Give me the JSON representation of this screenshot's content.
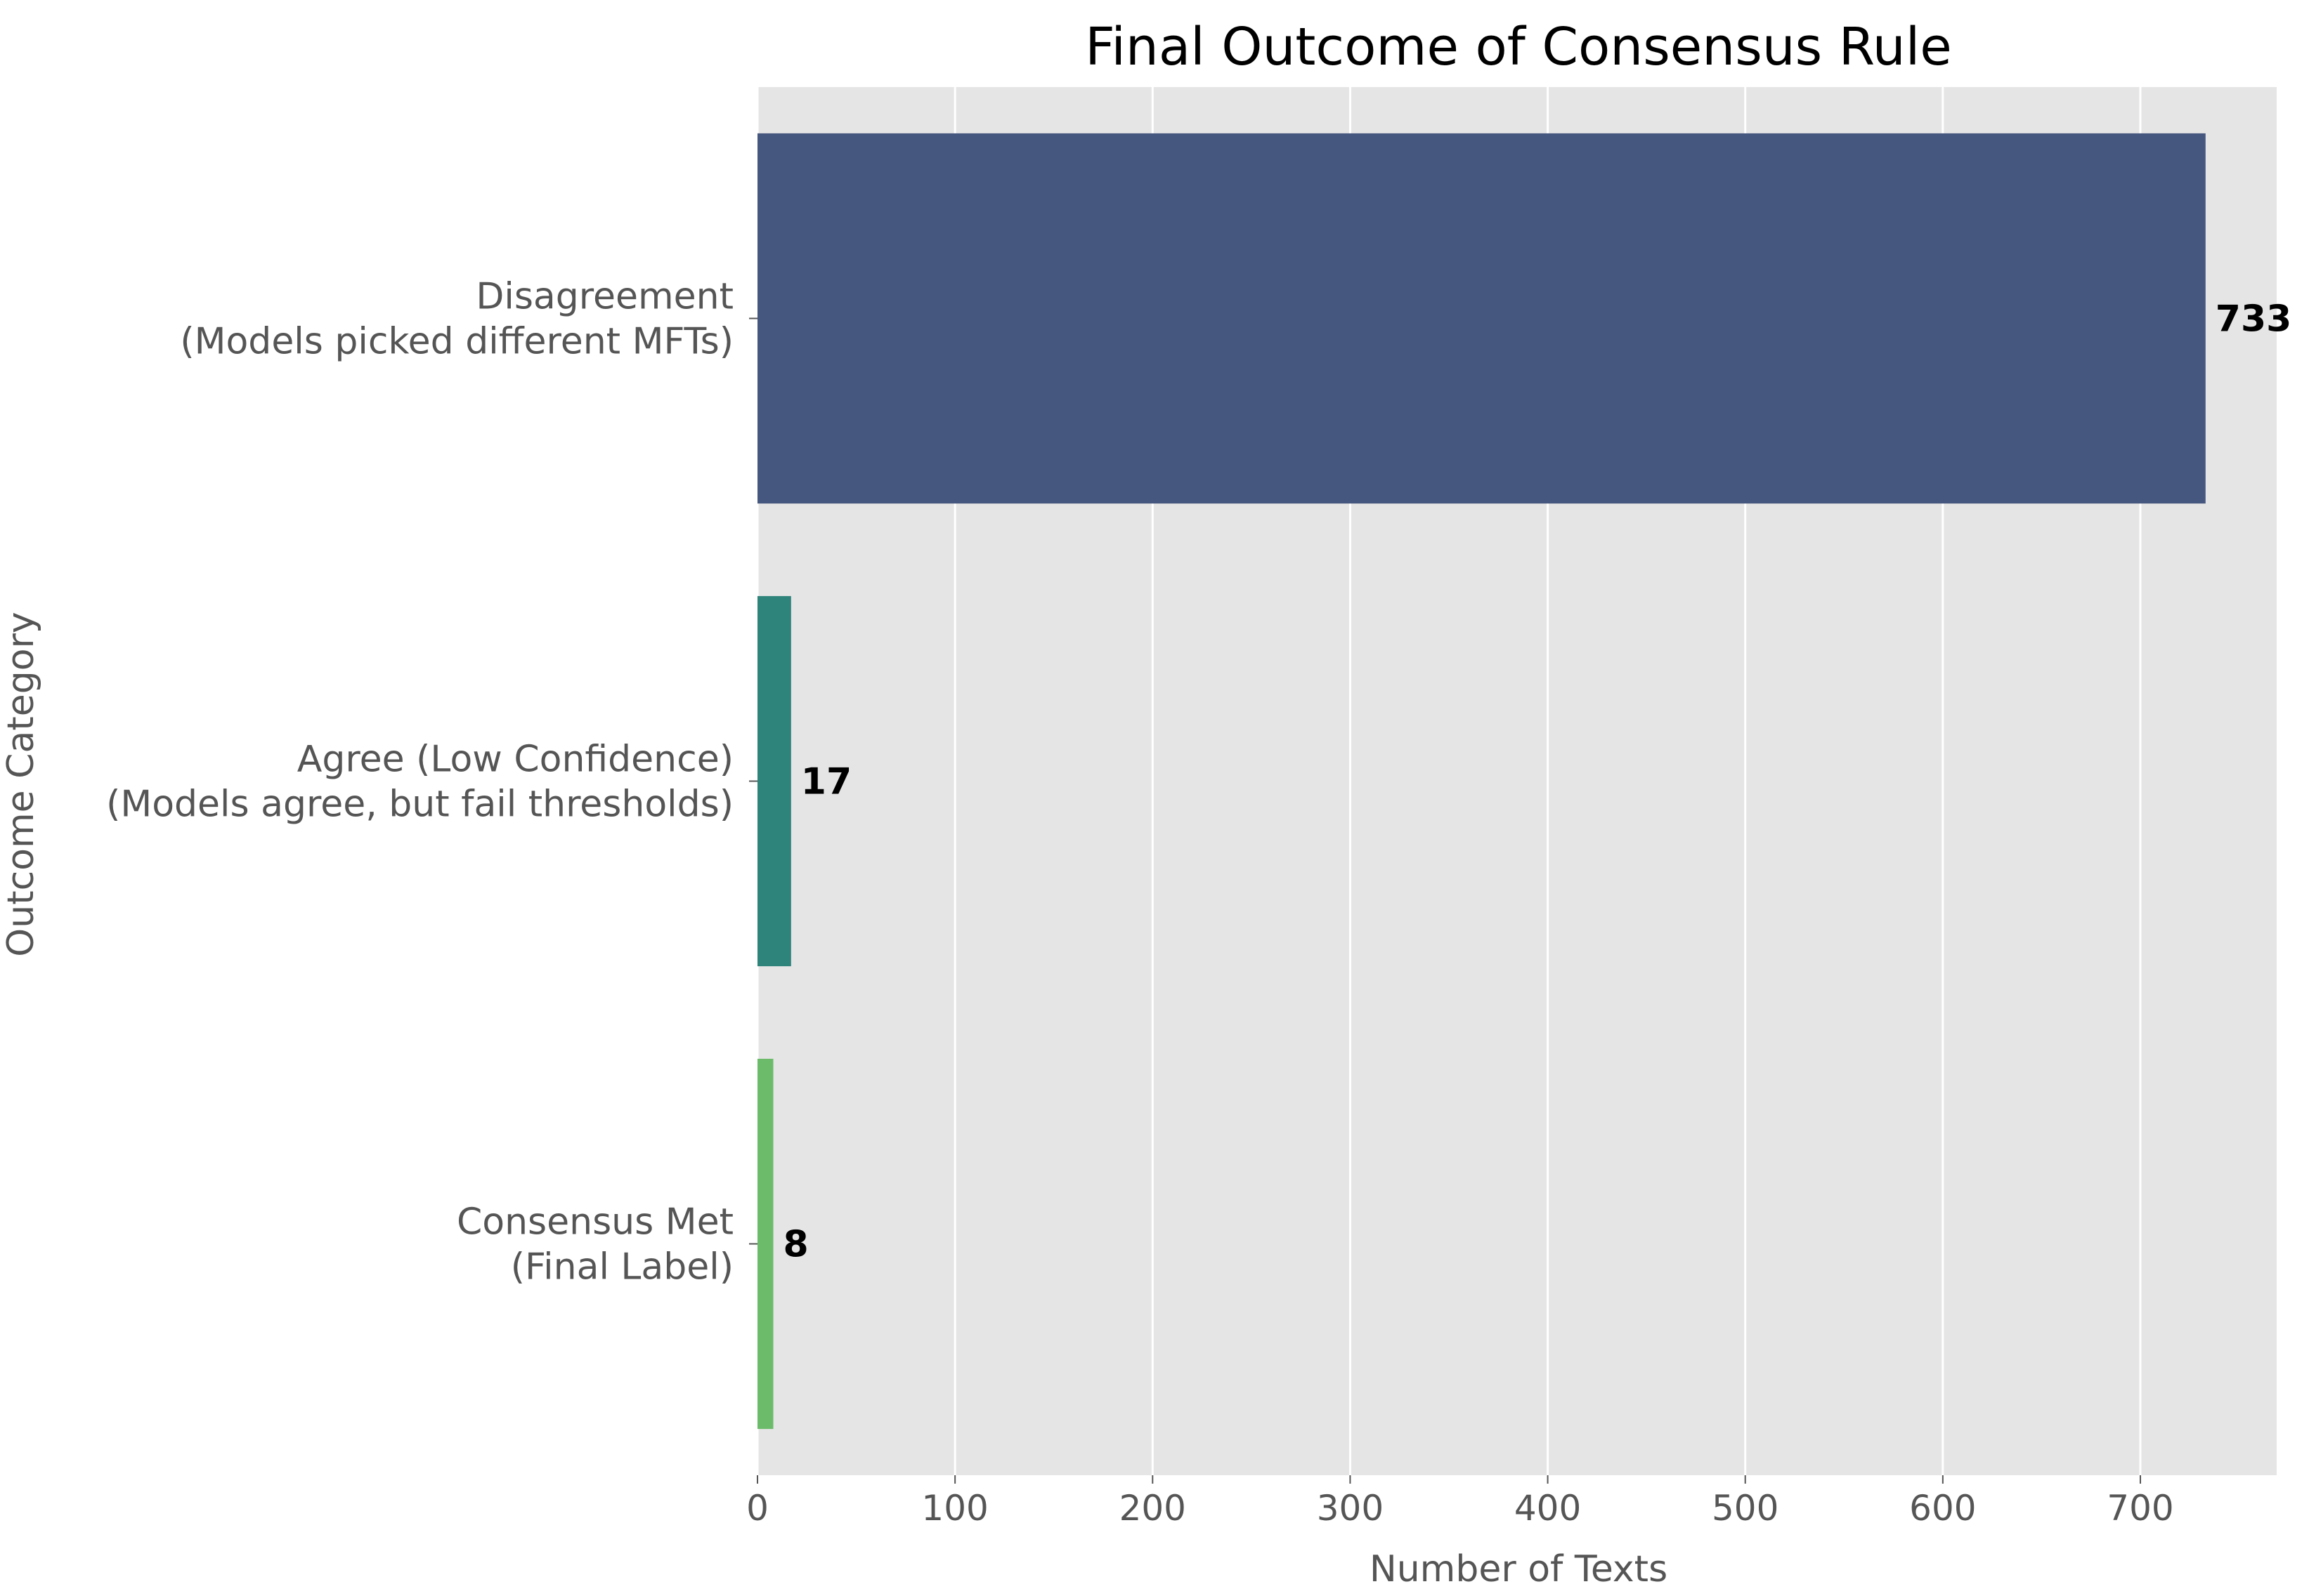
{
  "chart_data": {
    "type": "bar",
    "orientation": "horizontal",
    "title": "Final Outcome of Consensus Rule",
    "xlabel": "Number of Texts",
    "ylabel": "Outcome Category",
    "categories": [
      [
        "Disagreement",
        "(Models picked different MFTs)"
      ],
      [
        "Agree (Low Confidence)",
        "(Models agree, but fail thresholds)"
      ],
      [
        "Consensus Met",
        "(Final Label)"
      ]
    ],
    "values": [
      733,
      17,
      8
    ],
    "value_labels": [
      "733",
      "17",
      "8"
    ],
    "colors": [
      "#46577f",
      "#2e837a",
      "#6cbb6a"
    ],
    "xlim": [
      0,
      769
    ],
    "xticks": [
      0,
      100,
      200,
      300,
      400,
      500,
      600,
      700
    ],
    "xtick_labels": [
      "0",
      "100",
      "200",
      "300",
      "400",
      "500",
      "600",
      "700"
    ],
    "grid": true,
    "grid_axis": "x",
    "background": "#e5e5e5"
  }
}
